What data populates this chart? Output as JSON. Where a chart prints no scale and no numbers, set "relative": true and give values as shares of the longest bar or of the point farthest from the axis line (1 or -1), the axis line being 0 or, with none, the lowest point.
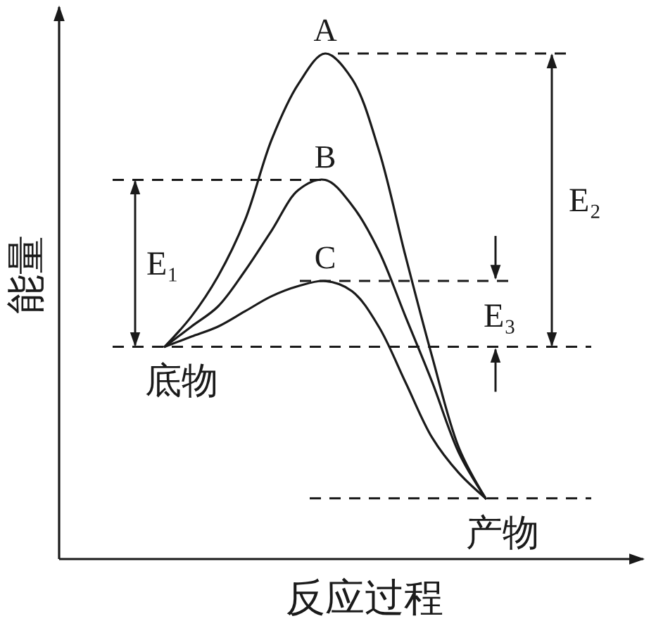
{
  "chart_data": {
    "type": "line",
    "relative": true,
    "tick_labels": false,
    "xlabel": "反应过程",
    "ylabel": "能量",
    "line_style": "solid",
    "categories": [
      null,
      null,
      null,
      null,
      null,
      null,
      null,
      null,
      null,
      null,
      null,
      null,
      null,
      null,
      null,
      null,
      null,
      null,
      null,
      null,
      null,
      null
    ],
    "series": [
      {
        "name": "A",
        "color": "#1a1a1a",
        "values": [
          null,
          null,
          null,
          null,
          0.42,
          0.48,
          0.56,
          0.67,
          0.83,
          0.94,
          1,
          0.95,
          0.81,
          0.6,
          0.4,
          0.22,
          0.12,
          null,
          null,
          null,
          null,
          null
        ]
      },
      {
        "name": "B",
        "color": "#1a1a1a",
        "values": [
          null,
          null,
          null,
          null,
          0.42,
          0.46,
          0.5,
          0.57,
          0.65,
          0.73,
          0.75,
          0.7,
          0.61,
          0.48,
          0.35,
          0.21,
          0.12,
          null,
          null,
          null,
          null,
          null
        ]
      },
      {
        "name": "C",
        "color": "#1a1a1a",
        "values": [
          null,
          null,
          null,
          null,
          0.42,
          0.44,
          0.46,
          0.49,
          0.52,
          0.54,
          0.55,
          0.53,
          0.46,
          0.35,
          0.24,
          0.17,
          0.12,
          null,
          null,
          null,
          null,
          null
        ]
      }
    ],
    "ref_lines": [
      {
        "axis": "y",
        "value": 0.75,
        "line_style": "dashed"
      },
      {
        "axis": "y",
        "value": 1,
        "line_style": "dashed"
      },
      {
        "axis": "y",
        "value": 0.55,
        "line_style": "dashed"
      },
      {
        "axis": "y",
        "value": 0.42,
        "line_style": "dashed"
      },
      {
        "axis": "y",
        "value": 0.12,
        "line_style": "dashed"
      }
    ],
    "annotations": [
      "E₁",
      "E₂",
      "E₃",
      {
        "text": "底物",
        "y": 0.42
      },
      {
        "text": "产物",
        "y": 0.12
      }
    ]
  }
}
